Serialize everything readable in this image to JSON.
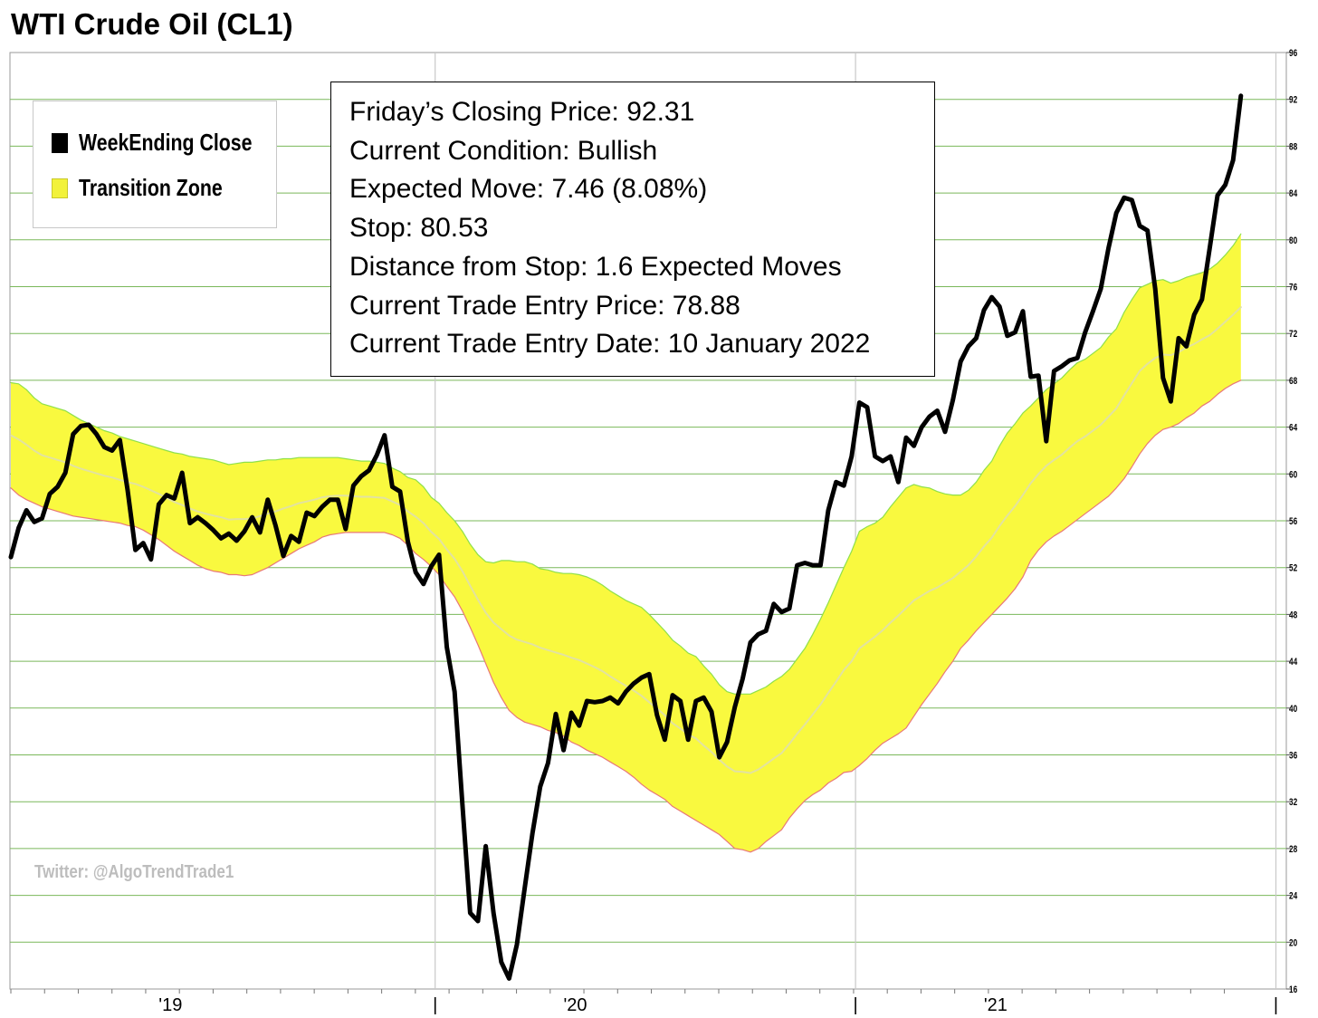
{
  "title": "WTI Crude Oil (CL1)",
  "legend": {
    "items": [
      {
        "label": "WeekEnding Close",
        "color": "#000000"
      },
      {
        "label": "Transition Zone",
        "color": "#f2f23a"
      }
    ]
  },
  "info": {
    "lines": [
      "Friday’s Closing Price: 92.31",
      "Current Condition: Bullish",
      "Expected Move: 7.46 (8.08%)",
      "Stop: 80.53",
      "Distance from Stop: 1.6 Expected Moves",
      "Current Trade Entry Price: 78.88",
      "Current Trade Entry Date: 10 January 2022"
    ]
  },
  "watermark": "Twitter: @AlgoTrendTrade1",
  "chart_data": {
    "type": "line",
    "title": "WTI Crude Oil (CL1)",
    "xlabel": "",
    "ylabel": "",
    "ylim": [
      16,
      96
    ],
    "y_ticks": [
      16,
      20,
      24,
      28,
      32,
      36,
      40,
      44,
      48,
      52,
      56,
      60,
      64,
      68,
      72,
      76,
      80,
      84,
      88,
      92,
      96
    ],
    "x_tick_labels": [
      {
        "label": "'19",
        "week": 20.5
      },
      {
        "label": "|",
        "week": 54.5
      },
      {
        "label": "'20",
        "week": 72.5
      },
      {
        "label": "|",
        "week": 108.5
      },
      {
        "label": "'21",
        "week": 126.5
      },
      {
        "label": "|",
        "week": 162.5
      }
    ],
    "grid": true,
    "legend_position": "top-left",
    "colors": {
      "close": "#000000",
      "zone_fill": "#f9f93f",
      "zone_upper": "#8fe04a",
      "zone_lower": "#e87878",
      "zone_mid": "#e2e2a0",
      "grid": "#7ab85a",
      "vgrid": "#c8c8c8"
    },
    "series": [
      {
        "name": "WeekEnding Close",
        "values": [
          52.9,
          55.4,
          56.9,
          55.9,
          56.2,
          58.3,
          58.9,
          60.1,
          63.4,
          64.1,
          64.2,
          63.4,
          62.3,
          62.0,
          62.9,
          58.6,
          53.5,
          54.1,
          52.7,
          57.4,
          58.2,
          57.9,
          60.1,
          55.8,
          56.3,
          55.8,
          55.2,
          54.5,
          54.9,
          54.3,
          55.1,
          56.3,
          55.0,
          57.8,
          55.6,
          53.0,
          54.7,
          54.2,
          56.7,
          56.4,
          57.2,
          57.8,
          57.8,
          55.3,
          59.0,
          59.8,
          60.3,
          61.6,
          63.3,
          58.9,
          58.5,
          54.2,
          51.6,
          50.6,
          52.1,
          53.1,
          45.2,
          41.4,
          31.8,
          22.5,
          21.8,
          28.2,
          22.5,
          18.3,
          16.9,
          19.8,
          24.6,
          29.3,
          33.3,
          35.3,
          39.5,
          36.4,
          39.6,
          38.5,
          40.6,
          40.5,
          40.6,
          40.9,
          40.4,
          41.4,
          42.1,
          42.6,
          42.9,
          39.4,
          37.3,
          41.1,
          40.6,
          37.3,
          40.6,
          40.9,
          39.7,
          35.8,
          37.1,
          40.1,
          42.5,
          45.6,
          46.3,
          46.6,
          48.9,
          48.2,
          48.5,
          52.2,
          52.4,
          52.2,
          52.2,
          56.9,
          59.3,
          59.0,
          61.5,
          66.1,
          65.7,
          61.5,
          61.1,
          61.5,
          59.3,
          63.1,
          62.4,
          64.0,
          64.9,
          65.4,
          63.6,
          66.3,
          69.6,
          70.9,
          71.6,
          74.0,
          75.1,
          74.3,
          71.8,
          72.1,
          73.9,
          68.3,
          68.4,
          62.8,
          68.8,
          69.2,
          69.7,
          69.9,
          72.1,
          73.9,
          75.8,
          79.3,
          82.3,
          83.6,
          83.4,
          81.2,
          80.8,
          75.8,
          68.2,
          66.2,
          71.6,
          70.9,
          73.6,
          74.9,
          79.3,
          83.8,
          84.7,
          86.8,
          92.3
        ]
      },
      {
        "name": "Transition Zone upper",
        "values": [
          67.8,
          67.7,
          67.2,
          66.5,
          66.0,
          65.8,
          65.6,
          65.4,
          65.0,
          64.6,
          64.3,
          64.0,
          63.7,
          63.5,
          63.2,
          63.0,
          62.8,
          62.6,
          62.4,
          62.2,
          62.0,
          61.8,
          61.7,
          61.5,
          61.4,
          61.3,
          61.2,
          61.0,
          60.8,
          60.9,
          61.0,
          61.0,
          61.1,
          61.2,
          61.2,
          61.3,
          61.3,
          61.4,
          61.4,
          61.4,
          61.4,
          61.4,
          61.4,
          61.3,
          61.2,
          61.1,
          61.1,
          61.0,
          60.9,
          60.5,
          60.2,
          59.7,
          59.5,
          58.9,
          58.0,
          57.5,
          56.7,
          56.0,
          55.1,
          54.0,
          53.1,
          52.5,
          52.4,
          52.6,
          52.6,
          52.5,
          52.5,
          52.3,
          51.9,
          51.8,
          51.6,
          51.5,
          51.5,
          51.4,
          51.2,
          50.9,
          50.5,
          50.0,
          49.6,
          49.2,
          48.9,
          48.6,
          48.0,
          47.3,
          46.6,
          45.8,
          45.3,
          44.7,
          44.4,
          43.6,
          42.9,
          42.0,
          41.4,
          41.2,
          41.2,
          41.2,
          41.5,
          41.8,
          42.3,
          42.7,
          43.3,
          44.2,
          45.1,
          46.3,
          47.6,
          49.0,
          50.5,
          52.0,
          53.4,
          55.1,
          55.5,
          55.8,
          56.3,
          57.2,
          58.0,
          58.8,
          59.1,
          58.9,
          58.8,
          58.5,
          58.3,
          58.2,
          58.2,
          58.6,
          59.3,
          60.3,
          61.1,
          62.4,
          63.5,
          64.3,
          65.2,
          65.8,
          66.5,
          67.2,
          67.7,
          68.2,
          68.9,
          69.5,
          69.8,
          70.3,
          70.8,
          71.7,
          72.4,
          73.8,
          74.9,
          75.9,
          76.2,
          76.5,
          76.6,
          76.3,
          76.5,
          76.8,
          77.0,
          77.2,
          77.5,
          78.0,
          78.7,
          79.5,
          80.5
        ]
      },
      {
        "name": "Transition Zone lower",
        "values": [
          58.8,
          58.2,
          57.8,
          57.5,
          57.2,
          57.0,
          56.8,
          56.6,
          56.4,
          56.3,
          56.2,
          56.1,
          56.0,
          55.9,
          55.8,
          55.6,
          55.5,
          55.2,
          54.8,
          54.4,
          53.9,
          53.4,
          53.0,
          52.6,
          52.2,
          51.9,
          51.7,
          51.6,
          51.4,
          51.4,
          51.3,
          51.4,
          51.7,
          52.0,
          52.4,
          52.8,
          53.2,
          53.6,
          53.9,
          54.2,
          54.6,
          54.8,
          54.9,
          55.0,
          55.0,
          55.0,
          55.0,
          55.0,
          55.0,
          54.8,
          54.5,
          53.9,
          53.2,
          52.7,
          52.1,
          51.4,
          50.4,
          49.5,
          48.3,
          46.9,
          45.4,
          43.8,
          42.2,
          40.9,
          39.8,
          39.2,
          38.8,
          38.6,
          38.4,
          38.1,
          37.9,
          37.6,
          37.1,
          36.8,
          36.4,
          36.1,
          35.8,
          35.4,
          35.0,
          34.6,
          34.1,
          33.5,
          33.0,
          32.6,
          32.2,
          31.6,
          31.2,
          30.8,
          30.4,
          30.0,
          29.6,
          29.2,
          28.6,
          28.0,
          27.9,
          27.7,
          28.0,
          28.6,
          29.1,
          29.6,
          30.6,
          31.4,
          32.1,
          32.6,
          33.0,
          33.6,
          34.0,
          34.5,
          34.6,
          35.1,
          35.7,
          36.4,
          37.0,
          37.4,
          37.8,
          38.3,
          39.3,
          40.3,
          41.2,
          42.1,
          43.1,
          44.0,
          45.1,
          45.8,
          46.6,
          47.3,
          48.0,
          48.7,
          49.4,
          50.2,
          51.2,
          52.6,
          53.5,
          54.2,
          54.7,
          55.1,
          55.6,
          56.1,
          56.6,
          57.1,
          57.6,
          58.1,
          58.8,
          59.6,
          60.6,
          61.7,
          62.6,
          63.3,
          63.8,
          64.0,
          64.3,
          64.8,
          65.2,
          65.8,
          66.2,
          66.8,
          67.3,
          67.7,
          68.0
        ]
      }
    ]
  }
}
